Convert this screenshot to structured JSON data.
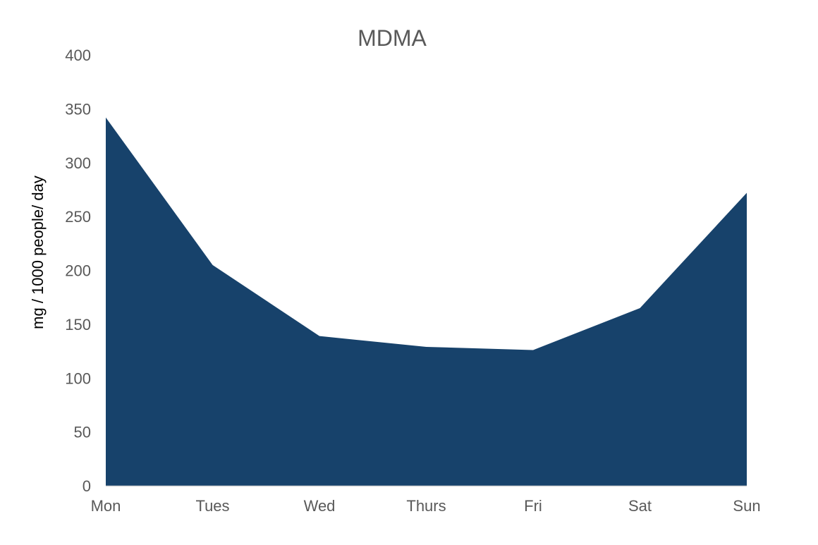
{
  "chart_data": {
    "type": "area",
    "title": "MDMA",
    "ylabel": "mg / 1000 people/ day",
    "xlabel": "",
    "categories": [
      "Mon",
      "Tues",
      "Wed",
      "Thurs",
      "Fri",
      "Sat",
      "Sun"
    ],
    "series": [
      {
        "values": [
          342,
          205,
          139,
          129,
          126,
          165,
          272
        ],
        "color": "#17426B"
      }
    ],
    "ylim": [
      0,
      400
    ],
    "yticks": [
      0,
      50,
      100,
      150,
      200,
      250,
      300,
      350,
      400
    ],
    "grid": false,
    "legend": "none",
    "axis_color": "#D9D9D9"
  }
}
